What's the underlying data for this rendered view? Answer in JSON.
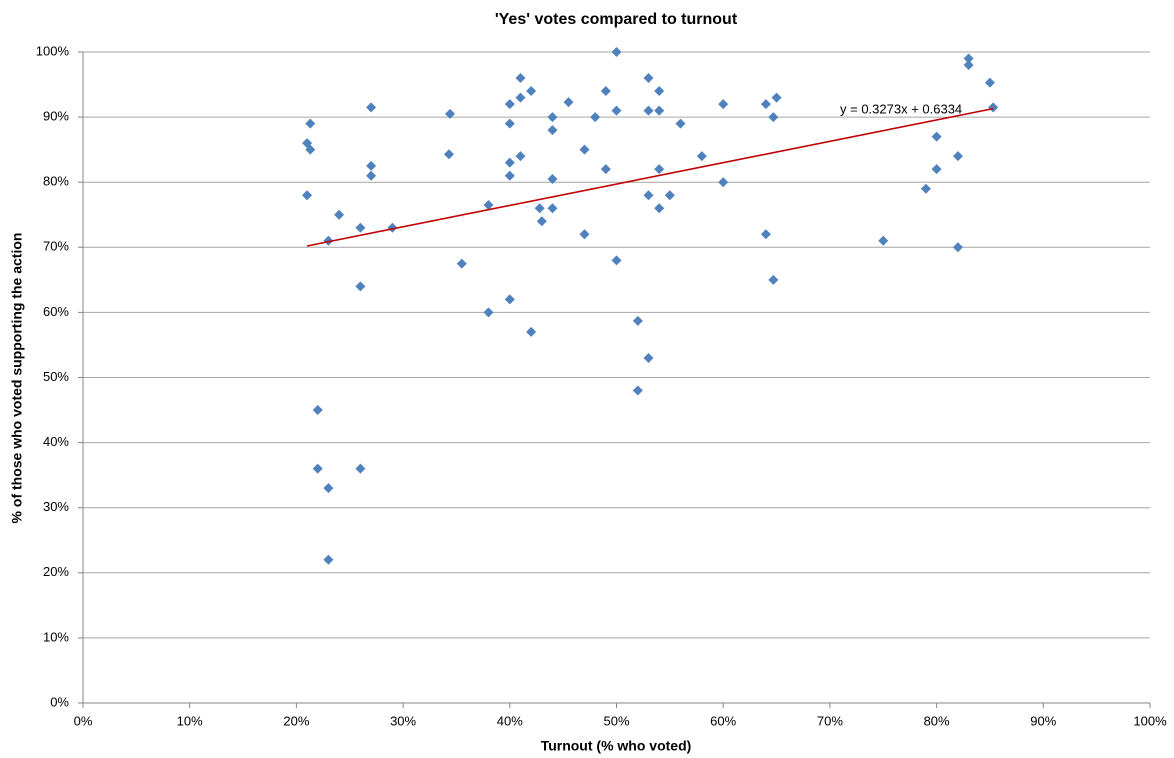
{
  "chart_data": {
    "type": "scatter",
    "title": "'Yes' votes compared to turnout",
    "xlabel": "Turnout (% who voted)",
    "ylabel": "% of those who voted supporting the action",
    "color": "#4f81bd",
    "x": [
      21,
      21.3,
      21.3,
      21,
      22,
      22,
      23,
      23,
      23,
      24,
      26,
      26,
      26,
      27,
      27,
      27,
      29,
      34.4,
      34.3,
      35.5,
      38,
      38,
      40,
      40,
      40,
      40,
      40,
      41,
      41,
      41,
      42,
      42,
      42.8,
      43,
      44,
      44,
      44,
      44,
      45.5,
      47,
      47,
      48,
      49,
      49,
      50,
      50,
      50,
      52,
      52,
      53,
      53,
      53,
      53,
      54,
      54,
      54,
      54,
      55,
      56,
      58,
      60,
      60,
      64,
      64,
      65,
      64.7,
      64.7,
      75,
      79,
      80,
      80,
      82,
      82,
      83,
      83,
      85,
      85.3
    ],
    "values": [
      86,
      89,
      85,
      78,
      45,
      36,
      33,
      22,
      71,
      75,
      73,
      64,
      36,
      91.5,
      82.5,
      81,
      73,
      90.5,
      84.3,
      67.5,
      76.5,
      60,
      92,
      89,
      83,
      81,
      62,
      96,
      93,
      84,
      94,
      57,
      76,
      74,
      90,
      88,
      80.5,
      76,
      92.3,
      85,
      72,
      90,
      94,
      82,
      100,
      91,
      68,
      58.7,
      48,
      96,
      91,
      78,
      53,
      94,
      91,
      82,
      76,
      78,
      89,
      84,
      92,
      80,
      92,
      72,
      93,
      90,
      65,
      71,
      79,
      87,
      82,
      84,
      70,
      99,
      98,
      95.3,
      91.5
    ],
    "trendline": {
      "label": "y = 0.3273x + 0.6334",
      "color": "#c00000",
      "x": [
        21,
        85.3
      ],
      "y": [
        70.2,
        91.3
      ]
    },
    "xlim": [
      0,
      100
    ],
    "ylim": [
      0,
      100
    ],
    "xticks": [
      {
        "value": 0,
        "label": "0%"
      },
      {
        "value": 10,
        "label": "10%"
      },
      {
        "value": 20,
        "label": "20%"
      },
      {
        "value": 30,
        "label": "30%"
      },
      {
        "value": 40,
        "label": "40%"
      },
      {
        "value": 50,
        "label": "50%"
      },
      {
        "value": 60,
        "label": "60%"
      },
      {
        "value": 70,
        "label": "70%"
      },
      {
        "value": 80,
        "label": "80%"
      },
      {
        "value": 90,
        "label": "90%"
      },
      {
        "value": 100,
        "label": "100%"
      }
    ],
    "yticks": [
      {
        "value": 0,
        "label": "0%"
      },
      {
        "value": 10,
        "label": "10%"
      },
      {
        "value": 20,
        "label": "20%"
      },
      {
        "value": 30,
        "label": "30%"
      },
      {
        "value": 40,
        "label": "40%"
      },
      {
        "value": 50,
        "label": "50%"
      },
      {
        "value": 60,
        "label": "60%"
      },
      {
        "value": 70,
        "label": "70%"
      },
      {
        "value": 80,
        "label": "80%"
      },
      {
        "value": 90,
        "label": "90%"
      },
      {
        "value": 100,
        "label": "100%"
      }
    ],
    "grid": true
  }
}
